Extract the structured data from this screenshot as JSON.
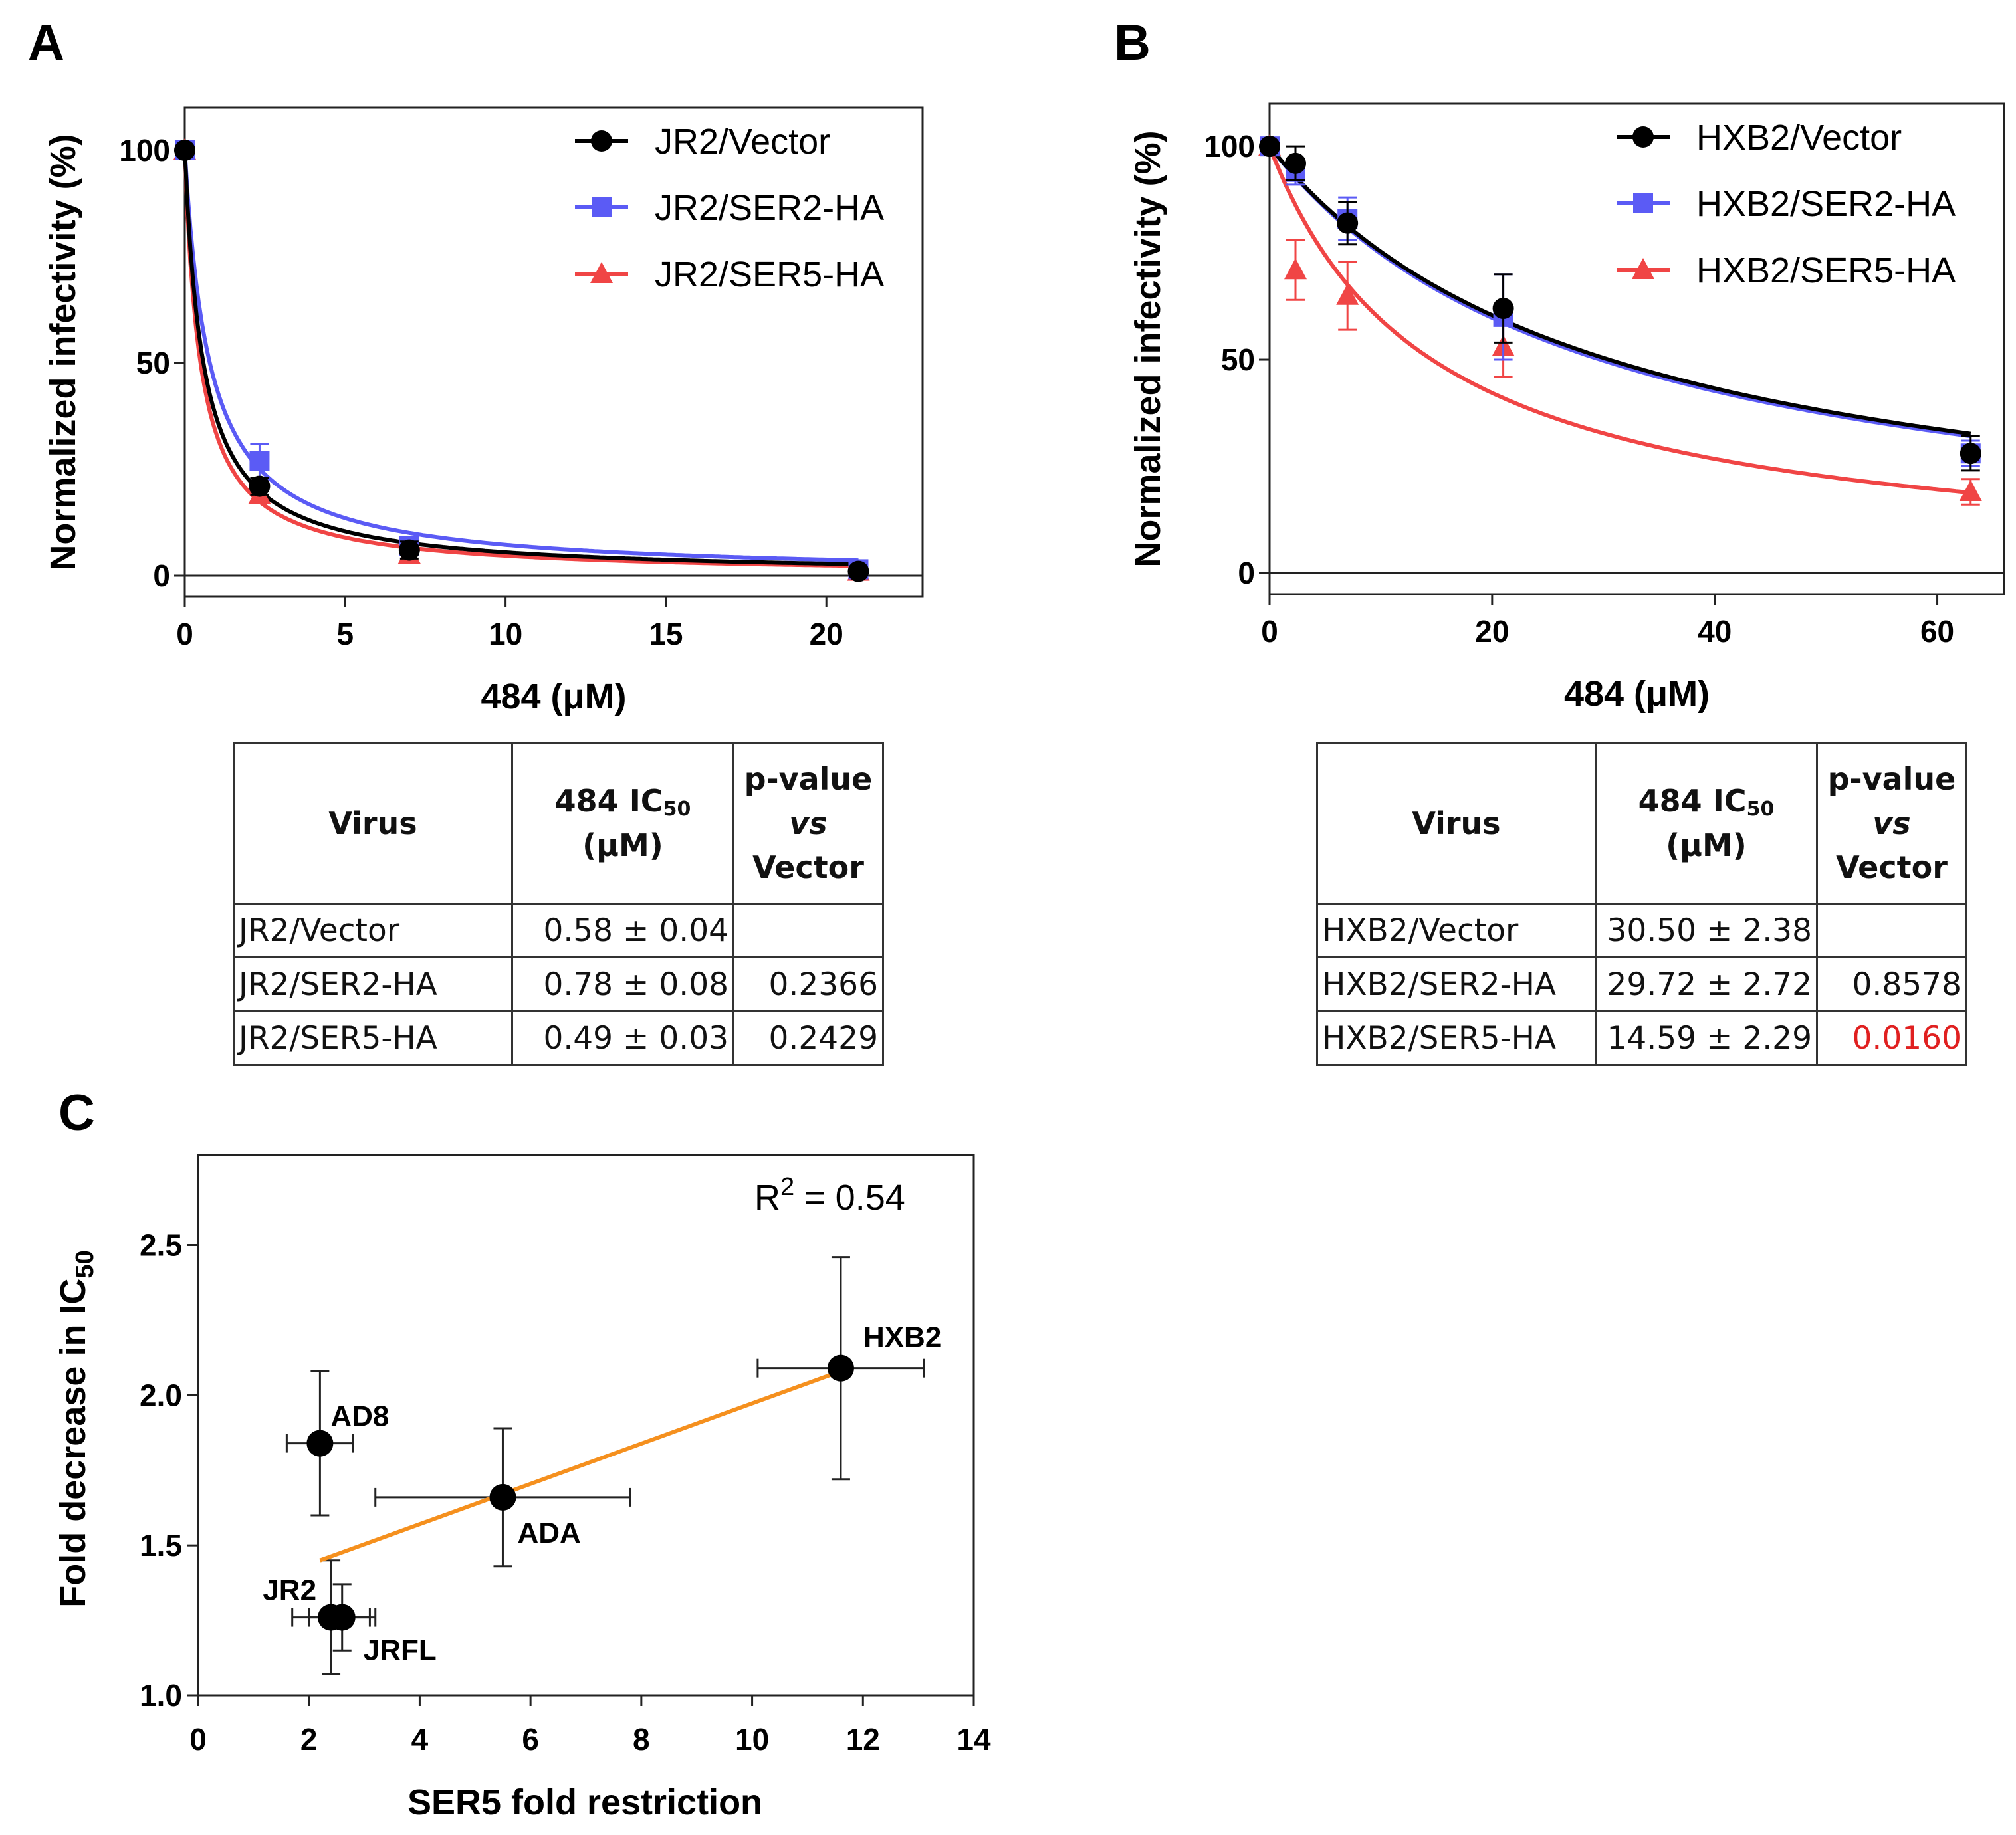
{
  "panel_labels": {
    "a": "A",
    "b": "B",
    "c": "C"
  },
  "chart_data": [
    {
      "panel": "A",
      "type": "line",
      "title": "",
      "xlabel": "484 (μM)",
      "ylabel": "Normalized infectivity (%)",
      "xlim": [
        0,
        23
      ],
      "ylim": [
        -5,
        110
      ],
      "xticks": [
        0,
        5,
        10,
        15,
        20
      ],
      "yticks": [
        0,
        50,
        100
      ],
      "legend_position": "top-right",
      "series": [
        {
          "name": "JR2/Vector",
          "color": "#000000",
          "marker": "circle",
          "x": [
            0,
            2.33,
            7,
            21
          ],
          "y": [
            100,
            21,
            6,
            1
          ],
          "err": [
            0,
            2,
            2,
            1
          ],
          "ic50": 0.58
        },
        {
          "name": "JR2/SER2-HA",
          "color": "#5b5bf5",
          "marker": "square",
          "x": [
            0,
            2.33,
            7,
            21
          ],
          "y": [
            100,
            27,
            7,
            1.5
          ],
          "err": [
            0,
            4,
            2,
            1
          ],
          "ic50": 0.78
        },
        {
          "name": "JR2/SER5-HA",
          "color": "#f04545",
          "marker": "triangle",
          "x": [
            0,
            2.33,
            7,
            21
          ],
          "y": [
            100,
            19,
            5,
            1
          ],
          "err": [
            0,
            2,
            2,
            1
          ],
          "ic50": 0.49
        }
      ]
    },
    {
      "panel": "B",
      "type": "line",
      "title": "",
      "xlabel": "484 (μM)",
      "ylabel": "Normalized infectivity (%)",
      "xlim": [
        0,
        66
      ],
      "ylim": [
        -5,
        110
      ],
      "xticks": [
        0,
        20,
        40,
        60
      ],
      "yticks": [
        0,
        50,
        100
      ],
      "legend_position": "top-right",
      "series": [
        {
          "name": "HXB2/Vector",
          "color": "#000000",
          "marker": "circle",
          "x": [
            0,
            2.33,
            7,
            21,
            63
          ],
          "y": [
            100,
            96,
            82,
            62,
            28
          ],
          "err": [
            0,
            4,
            5,
            8,
            4
          ],
          "ic50": 30.5
        },
        {
          "name": "HXB2/SER2-HA",
          "color": "#5b5bf5",
          "marker": "square",
          "x": [
            0,
            2.33,
            7,
            21,
            63
          ],
          "y": [
            100,
            94,
            83,
            60,
            28
          ],
          "err": [
            0,
            3,
            5,
            10,
            3
          ],
          "ic50": 29.72
        },
        {
          "name": "HXB2/SER5-HA",
          "color": "#f04545",
          "marker": "triangle",
          "x": [
            0,
            2.33,
            7,
            21,
            63
          ],
          "y": [
            100,
            71,
            65,
            53,
            19
          ],
          "err": [
            0,
            7,
            8,
            7,
            3
          ],
          "ic50": 14.59
        }
      ]
    },
    {
      "panel": "C",
      "type": "scatter",
      "title": "",
      "xlabel": "SER5 fold restriction",
      "ylabel_main": "Fold decrease in IC",
      "ylabel_sub": "50",
      "xlim": [
        0,
        14
      ],
      "ylim": [
        1.0,
        2.8
      ],
      "xticks": [
        0,
        2,
        4,
        6,
        8,
        10,
        12,
        14
      ],
      "yticks": [
        1.0,
        1.5,
        2.0,
        2.5
      ],
      "annotation": {
        "text": "R",
        "sup": "2",
        "rest": " = 0.54"
      },
      "points": [
        {
          "label": "HXB2",
          "x": 11.6,
          "y": 2.09,
          "xerr": 1.5,
          "yerr": 0.37
        },
        {
          "label": "AD8",
          "x": 2.2,
          "y": 1.84,
          "xerr": 0.6,
          "yerr": 0.24
        },
        {
          "label": "ADA",
          "x": 5.5,
          "y": 1.66,
          "xerr": 2.3,
          "yerr": 0.23
        },
        {
          "label": "JR2",
          "x": 2.4,
          "y": 1.26,
          "xerr": 0.7,
          "yerr": 0.19
        },
        {
          "label": "JRFL",
          "x": 2.6,
          "y": 1.26,
          "xerr": 0.6,
          "yerr": 0.11
        }
      ],
      "fit_line": {
        "color": "#f5901e",
        "x": [
          2.2,
          11.6
        ],
        "y": [
          1.45,
          2.08
        ]
      }
    }
  ],
  "table_a": {
    "headers": {
      "virus": "Virus",
      "ic50_pre": "484 IC",
      "ic50_sub": "50",
      "ic50_unit": "(μM)",
      "p_top": "p-value",
      "p_vs": "vs",
      "p_rest": " Vector"
    },
    "rows": [
      {
        "virus": "JR2/Vector",
        "ic50": "0.58 ± 0.04",
        "p": ""
      },
      {
        "virus": "JR2/SER2-HA",
        "ic50": "0.78 ± 0.08",
        "p": "0.2366"
      },
      {
        "virus": "JR2/SER5-HA",
        "ic50": "0.49 ± 0.03",
        "p": "0.2429"
      }
    ]
  },
  "table_b": {
    "headers": {
      "virus": "Virus",
      "ic50_pre": "484 IC",
      "ic50_sub": "50",
      "ic50_unit": "(μM)",
      "p_top": "p-value",
      "p_vs": "vs",
      "p_rest": " Vector"
    },
    "rows": [
      {
        "virus": "HXB2/Vector",
        "ic50": "30.50 ± 2.38",
        "p": ""
      },
      {
        "virus": "HXB2/SER2-HA",
        "ic50": "29.72 ± 2.72",
        "p": "0.8578"
      },
      {
        "virus": "HXB2/SER5-HA",
        "ic50": "14.59 ± 2.29",
        "p": "0.0160"
      }
    ],
    "significant_color": "#e02020"
  }
}
